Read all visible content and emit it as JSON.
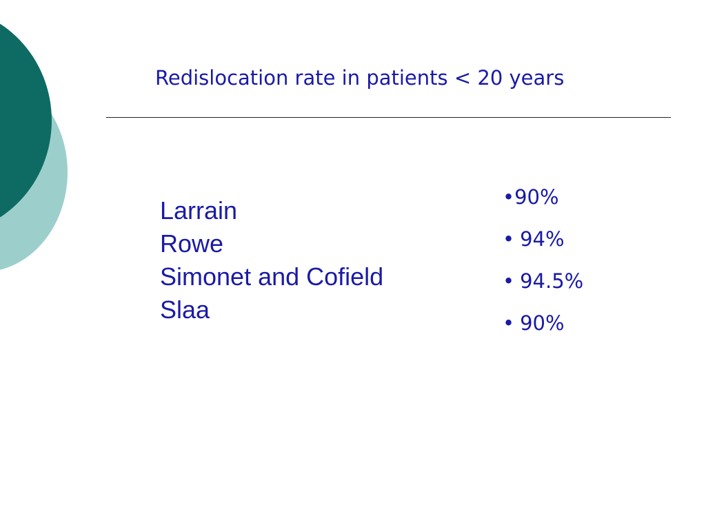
{
  "slide": {
    "title": "Redislocation rate in patients < 20 years",
    "authors": [
      "Larrain",
      "Rowe",
      "Simonet and Cofield",
      "Slaa"
    ],
    "rates": [
      "90%",
      "94%",
      "94.5%",
      "90%"
    ],
    "bullet": "•"
  },
  "colors": {
    "text": "#1a1aa6",
    "accent_dark": "#0e6b64",
    "accent_light": "#9ccfcc"
  }
}
